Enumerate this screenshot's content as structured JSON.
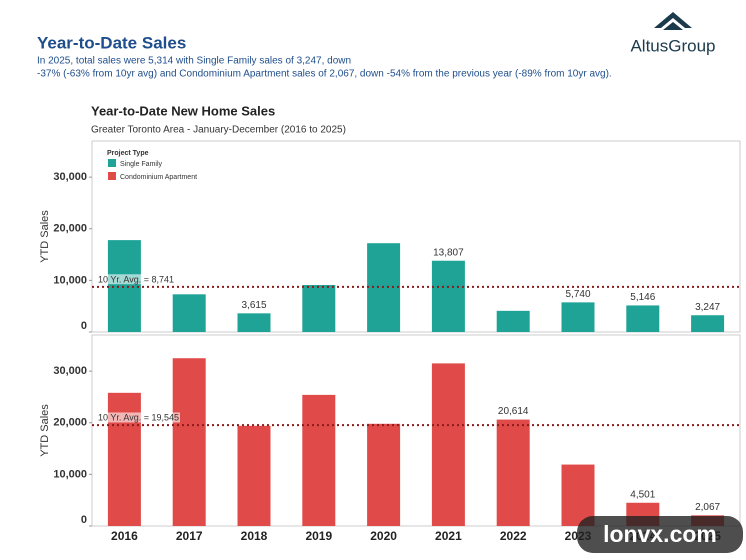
{
  "header": {
    "title": "Year-to-Date Sales",
    "subtitle_lines": [
      "In 2025, total sales were 5,314 with Single Family sales of 3,247, down",
      "-37% (-63% from 10yr avg) and Condominium Apartment sales of 2,067, down -54% from the previous year (-89% from 10yr avg)."
    ],
    "logo": "AltusGroup"
  },
  "watermark": "lonvx.com",
  "chart_data": {
    "type": "bar",
    "title": "Year-to-Date New Home Sales",
    "subtitle": "Greater Toronto Area - January-December (2016 to 2025)",
    "legend_title": "Project Type",
    "y_label": "YTD Sales",
    "categories": [
      "2016",
      "2017",
      "2018",
      "2019",
      "2020",
      "2021",
      "2022",
      "2023",
      "2024",
      "2025"
    ],
    "ylim": [
      0,
      37000
    ],
    "yticks": [
      0,
      {
        "value": 10000,
        "label": "10,000"
      },
      {
        "value": 20000,
        "label": "20,000"
      },
      {
        "value": 30000,
        "label": "30,000"
      }
    ],
    "series": [
      {
        "name": "Single Family",
        "color": "#1fa396",
        "values": [
          17800,
          7300,
          3615,
          9100,
          17200,
          13807,
          4100,
          5740,
          5146,
          3247
        ],
        "value_labels": [
          null,
          null,
          "3,615",
          null,
          null,
          "13,807",
          null,
          "5,740",
          "5,146",
          "3,247"
        ],
        "reference_value": 8741,
        "reference_label": "10 Yr. Avg. = 8,741"
      },
      {
        "name": "Condominium Apartment",
        "color": "#e04b4a",
        "values": [
          25800,
          32500,
          19400,
          25400,
          19800,
          31500,
          20614,
          11900,
          4501,
          2067
        ],
        "value_labels": [
          null,
          null,
          null,
          null,
          null,
          null,
          "20,614",
          null,
          "4,501",
          "2,067"
        ],
        "reference_value": 19545,
        "reference_label": "10 Yr. Avg. = 19,545"
      }
    ]
  }
}
